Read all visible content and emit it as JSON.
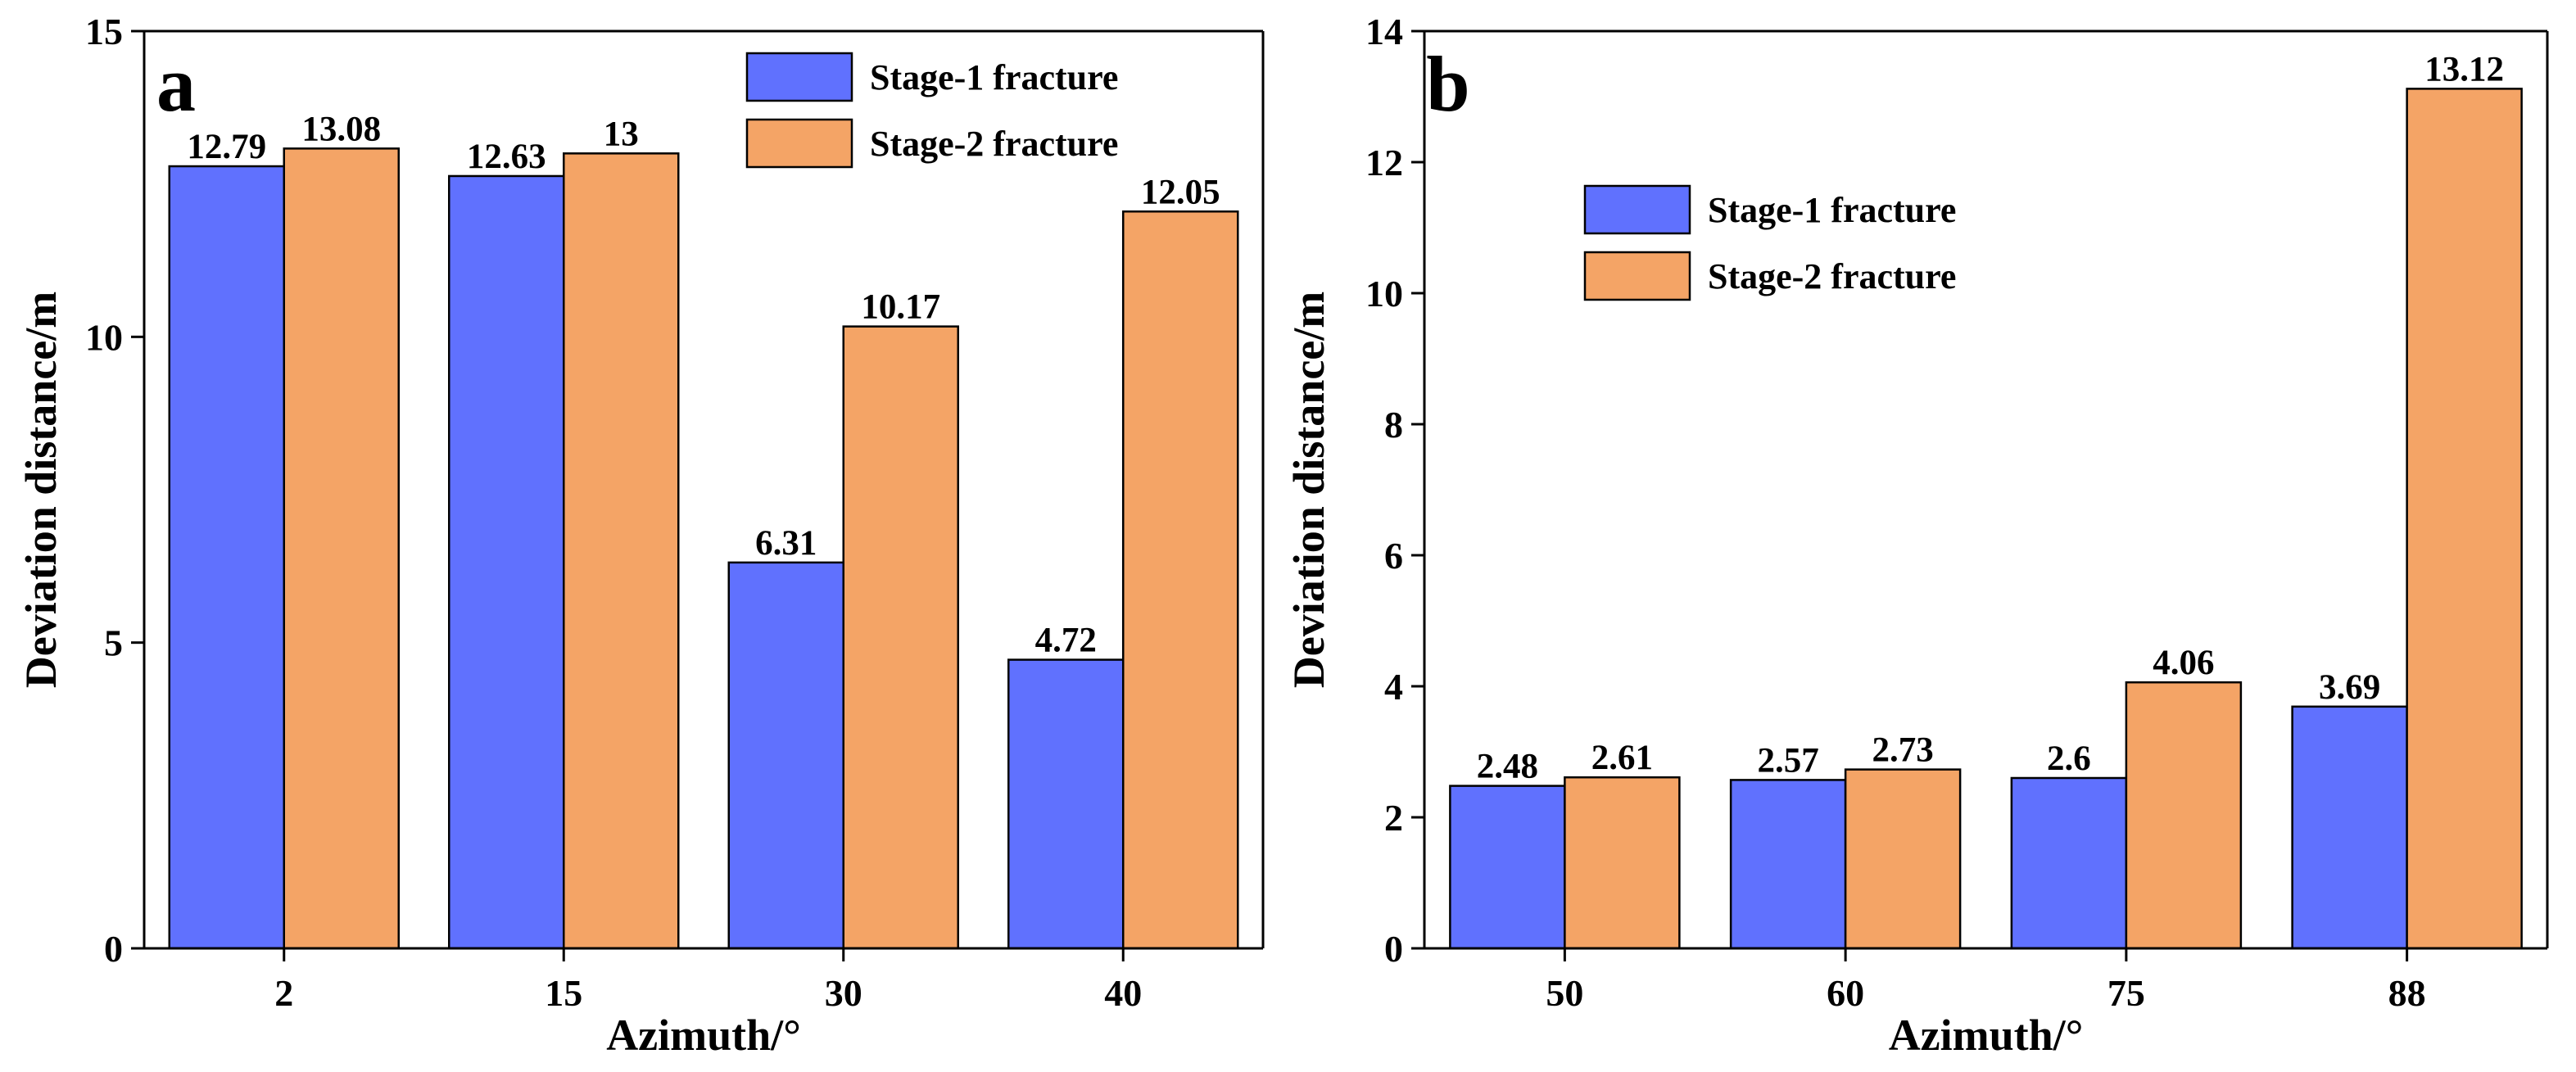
{
  "chart_data": [
    {
      "type": "bar",
      "panel": "a",
      "categories": [
        "2",
        "15",
        "30",
        "40"
      ],
      "series": [
        {
          "name": "Stage-1 fracture",
          "values": [
            12.79,
            12.63,
            6.31,
            4.72
          ],
          "labels": [
            "12.79",
            "12.63",
            "6.31",
            "4.72"
          ],
          "color": "#6071fe"
        },
        {
          "name": "Stage-2 fracture",
          "values": [
            13.08,
            13,
            10.17,
            12.05
          ],
          "labels": [
            "13.08",
            "13",
            "10.17",
            "12.05"
          ],
          "color": "#f4a466"
        }
      ],
      "xlabel": "Azimuth/°",
      "ylabel": "Deviation distance/m",
      "ylim": [
        0,
        15
      ],
      "yticks": [
        0,
        5,
        10,
        15
      ],
      "ytick_labels": [
        "0",
        "5",
        "10",
        "15"
      ],
      "legend_position": "top-right",
      "grid": false
    },
    {
      "type": "bar",
      "panel": "b",
      "categories": [
        "50",
        "60",
        "75",
        "88"
      ],
      "series": [
        {
          "name": "Stage-1 fracture",
          "values": [
            2.48,
            2.57,
            2.6,
            3.69
          ],
          "labels": [
            "2.48",
            "2.57",
            "2.6",
            "3.69"
          ],
          "color": "#6071fe"
        },
        {
          "name": "Stage-2 fracture",
          "values": [
            2.61,
            2.73,
            4.06,
            13.12
          ],
          "labels": [
            "2.61",
            "2.73",
            "4.06",
            "13.12"
          ],
          "color": "#f4a466"
        }
      ],
      "xlabel": "Azimuth/°",
      "ylabel": "Deviation distance/m",
      "ylim": [
        0,
        14
      ],
      "yticks": [
        0,
        2,
        4,
        6,
        8,
        10,
        12,
        14
      ],
      "ytick_labels": [
        "0",
        "2",
        "4",
        "6",
        "8",
        "10",
        "12",
        "14"
      ],
      "legend_position": "top-center",
      "grid": false
    }
  ]
}
